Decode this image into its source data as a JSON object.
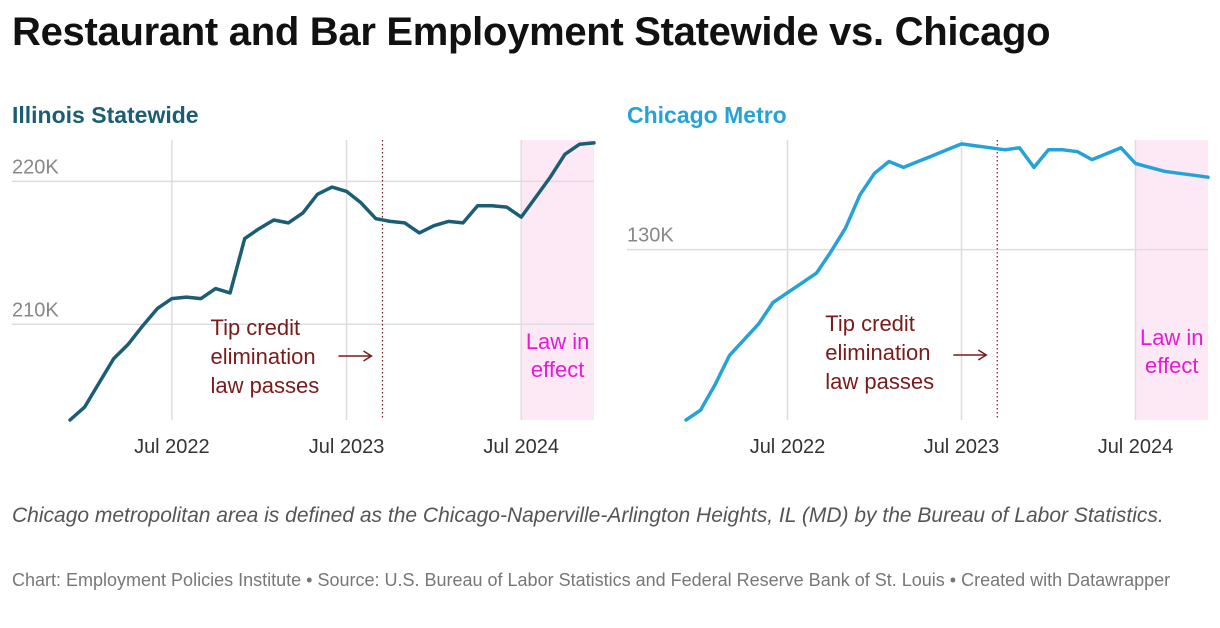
{
  "title": "Restaurant and Bar Employment Statewide vs. Chicago",
  "note": "Chicago metropolitan area is defined as the Chicago-Naperville-Arlington Heights, IL (MD) by the Bureau of Labor Statistics.",
  "credit_parts": [
    "Chart: Employment Policies Institute",
    "Source: U.S. Bureau of Labor Statistics and Federal Reserve Bank of St. Louis",
    "Created with Datawrapper"
  ],
  "colors": {
    "illinois": "#1b5e74",
    "chicago": "#26a3d6",
    "passes": "#7a1b1b",
    "effect_text": "#e61ad6",
    "effect_band": "#fde9f5",
    "grid": "#dddddd",
    "axis_text": "#888888"
  },
  "chart_data": [
    {
      "type": "line",
      "title": "Illinois Statewide",
      "x": [
        "2021-12",
        "2022-01",
        "2022-02",
        "2022-03",
        "2022-04",
        "2022-05",
        "2022-06",
        "2022-07",
        "2022-08",
        "2022-09",
        "2022-10",
        "2022-11",
        "2022-12",
        "2023-01",
        "2023-02",
        "2023-03",
        "2023-04",
        "2023-05",
        "2023-06",
        "2023-07",
        "2023-08",
        "2023-09",
        "2023-10",
        "2023-11",
        "2023-12",
        "2024-01",
        "2024-02",
        "2024-03",
        "2024-04",
        "2024-05",
        "2024-06",
        "2024-07",
        "2024-08",
        "2024-09",
        "2024-10",
        "2024-11",
        "2024-12"
      ],
      "series": [
        {
          "name": "Illinois Statewide",
          "values": [
            203.3,
            204.2,
            205.9,
            207.6,
            208.6,
            209.9,
            211.1,
            211.8,
            211.9,
            211.8,
            212.5,
            212.2,
            216.0,
            216.7,
            217.3,
            217.1,
            217.8,
            219.1,
            219.6,
            219.3,
            218.5,
            217.4,
            217.2,
            217.1,
            216.4,
            216.9,
            217.2,
            217.1,
            218.3,
            218.3,
            218.2,
            217.5,
            218.9,
            220.3,
            221.9,
            222.6,
            222.7
          ]
        }
      ],
      "x_ticks": [
        "Jul 2022",
        "Jul 2023",
        "Jul 2024"
      ],
      "y_ticks": [
        {
          "value": 210,
          "label": "210K"
        },
        {
          "value": 220,
          "label": "220K"
        }
      ],
      "ylim": [
        203.3,
        222.9
      ],
      "annotations": {
        "passes": {
          "date": "2023-09-15",
          "text": [
            "Tip credit",
            "elimination",
            "law passes"
          ]
        },
        "effect": {
          "start": "2024-07",
          "text": [
            "Law in",
            "effect"
          ]
        }
      }
    },
    {
      "type": "line",
      "title": "Chicago Metro",
      "x": [
        "2021-12",
        "2022-01",
        "2022-02",
        "2022-03",
        "2022-04",
        "2022-05",
        "2022-06",
        "2022-07",
        "2022-08",
        "2022-09",
        "2022-10",
        "2022-11",
        "2022-12",
        "2023-01",
        "2023-02",
        "2023-03",
        "2023-04",
        "2023-05",
        "2023-06",
        "2023-07",
        "2023-08",
        "2023-09",
        "2023-10",
        "2023-11",
        "2023-12",
        "2024-01",
        "2024-02",
        "2024-03",
        "2024-04",
        "2024-05",
        "2024-06",
        "2024-07",
        "2024-08",
        "2024-09",
        "2024-10",
        "2024-11",
        "2024-12"
      ],
      "series": [
        {
          "name": "Chicago Metro",
          "values": [
            121.3,
            121.8,
            123.1,
            124.6,
            125.4,
            126.2,
            127.3,
            127.8,
            128.3,
            128.8,
            129.9,
            131.1,
            132.8,
            133.9,
            134.5,
            134.2,
            134.5,
            134.8,
            135.1,
            135.4,
            135.3,
            135.2,
            135.1,
            135.2,
            134.2,
            135.1,
            135.1,
            135.0,
            134.6,
            134.9,
            135.2,
            134.4,
            134.2,
            134.0,
            133.9,
            133.8,
            133.7
          ]
        }
      ],
      "x_ticks": [
        "Jul 2022",
        "Jul 2023",
        "Jul 2024"
      ],
      "y_ticks": [
        {
          "value": 130,
          "label": "130K"
        }
      ],
      "ylim": [
        121.3,
        135.6
      ],
      "annotations": {
        "passes": {
          "date": "2023-09-15",
          "text": [
            "Tip credit",
            "elimination",
            "law passes"
          ]
        },
        "effect": {
          "start": "2024-07",
          "text": [
            "Law in",
            "effect"
          ]
        }
      }
    }
  ]
}
